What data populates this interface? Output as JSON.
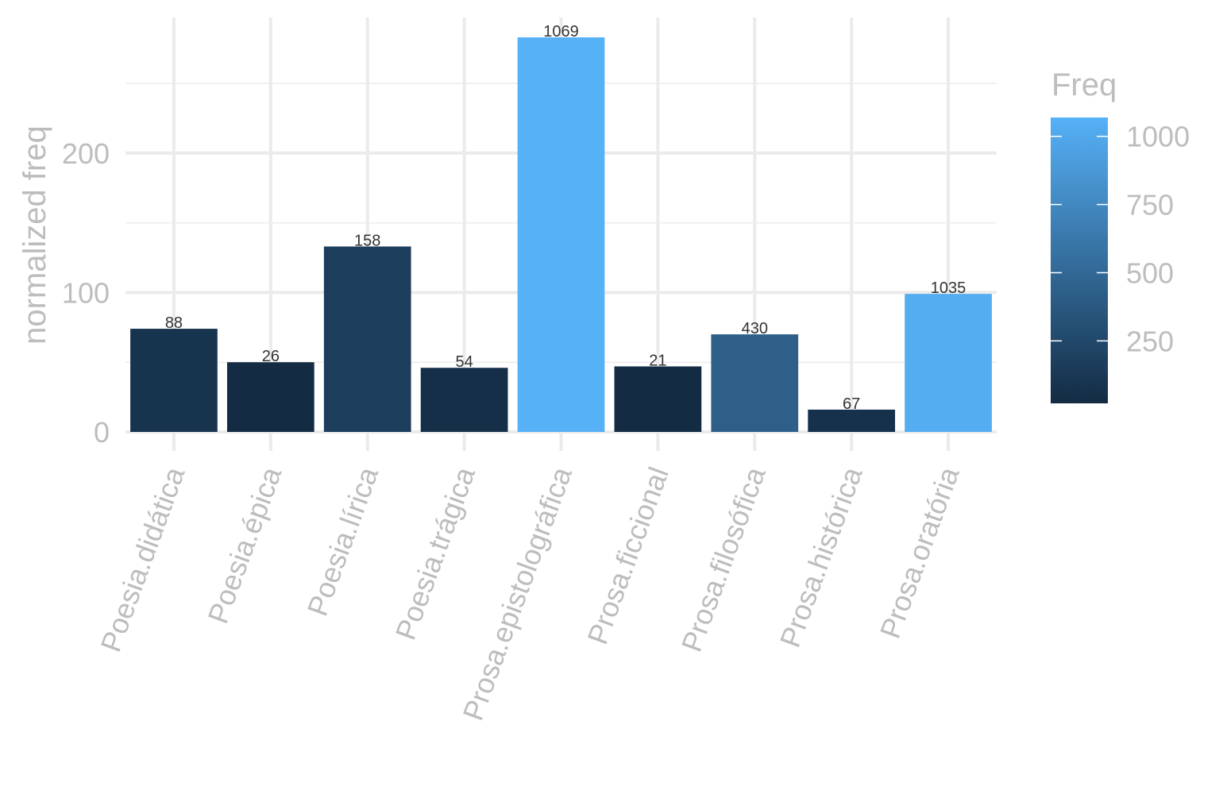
{
  "chart_data": {
    "type": "bar",
    "categories": [
      "Poesia.didática",
      "Poesia.épica",
      "Poesia.lírica",
      "Poesia.trágica",
      "Prosa.epistolográfica",
      "Prosa.ficcional",
      "Prosa.filosófica",
      "Prosa.histórica",
      "Prosa.oratória"
    ],
    "values": [
      74,
      50,
      133,
      46,
      283,
      47,
      70,
      16,
      99
    ],
    "labels": [
      "88",
      "26",
      "158",
      "54",
      "1069",
      "21",
      "430",
      "67",
      "1035"
    ],
    "freq": [
      88,
      26,
      158,
      54,
      1069,
      21,
      430,
      67,
      1035
    ],
    "ylabel": "normalized freq",
    "xlabel": "",
    "ylim": [
      0,
      290
    ],
    "yticks": [
      0,
      100,
      200
    ],
    "ytick_labels": [
      "0",
      "100",
      "200"
    ],
    "grid": true,
    "legend": {
      "title": "Freq",
      "position": "right",
      "ticks": [
        250,
        500,
        750,
        1000
      ],
      "tick_labels": [
        "250",
        "500",
        "750",
        "1000"
      ],
      "range": [
        21,
        1069
      ],
      "color_low": "#132B43",
      "color_high": "#56B1F7"
    }
  }
}
